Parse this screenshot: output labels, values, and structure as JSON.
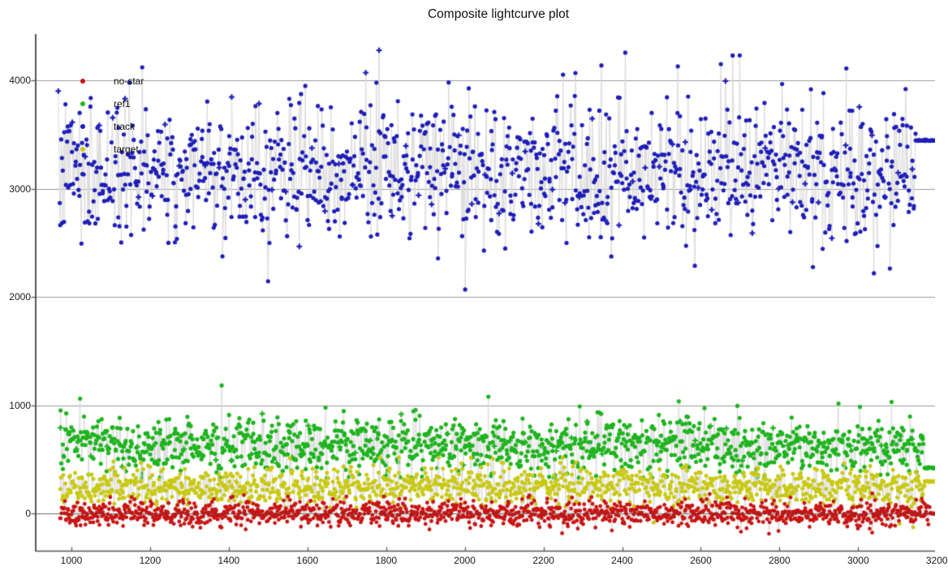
{
  "chart_data": {
    "type": "scatter",
    "title": "Composite lightcurve plot",
    "xlabel": "",
    "ylabel": "",
    "x_ticks": [
      1000,
      1200,
      1400,
      1600,
      1800,
      2000,
      2200,
      2400,
      2600,
      2800,
      3000,
      3200
    ],
    "y_ticks": [
      0,
      1000,
      2000,
      3000,
      4000
    ],
    "x_range": [
      967,
      3200
    ],
    "y_range": [
      -352,
      4427
    ],
    "grid": "horizontal-only",
    "legend": {
      "position": "top-left-inside",
      "entries": [
        {
          "label": "no-star",
          "color": "#c81414"
        },
        {
          "label": "ref1",
          "color": "#1eb41e"
        },
        {
          "label": "track",
          "color": "#1e1eb8"
        },
        {
          "label": "target",
          "color": "#c9c914"
        }
      ]
    },
    "colors": {
      "background": "#ffffff",
      "grid": "#9a9a9a",
      "axis": "#555555",
      "stem": "#dadada",
      "zero_line": "rgba(70,70,70,0.55)",
      "title_text": "#111111",
      "tick_text": "#1a1a1a"
    },
    "series": [
      {
        "name": "track",
        "color": "#1e1eb8",
        "marker": "circle-with-occasional-plus",
        "count": 1250,
        "seed": 7,
        "x_start": 968,
        "x_end": 3196,
        "y_mean": 3165,
        "y_sd": 315,
        "y_min": 2065,
        "y_max": 4345,
        "marker_radius": 2.6,
        "plus_every": 19,
        "tail_points": 28,
        "tail_y": 3445,
        "spikes": [
          {
            "x": 2408,
            "y": 4255
          },
          {
            "x": 2651,
            "y": 4150
          },
          {
            "x": 2001,
            "y": 2068
          },
          {
            "x": 2970,
            "y": 4110
          },
          {
            "x": 1180,
            "y": 4120
          }
        ]
      },
      {
        "name": "ref1",
        "color": "#1eb41e",
        "marker": "circle-with-occasional-plus",
        "count": 1300,
        "seed": 13,
        "x_start": 972,
        "x_end": 3196,
        "y_mean": 630,
        "y_sd": 125,
        "y_min": 330,
        "y_max": 1190,
        "marker_radius": 2.6,
        "plus_every": 23,
        "tail_points": 17,
        "tail_y": 420,
        "spikes": [
          {
            "x": 1022,
            "y": 1060
          },
          {
            "x": 1382,
            "y": 1182
          },
          {
            "x": 2060,
            "y": 1078
          },
          {
            "x": 2544,
            "y": 1035
          },
          {
            "x": 2950,
            "y": 1015
          },
          {
            "x": 3085,
            "y": 1030
          }
        ]
      },
      {
        "name": "target",
        "color": "#c9c914",
        "marker": "circle",
        "count": 1300,
        "seed": 21,
        "x_start": 972,
        "x_end": 3196,
        "y_mean": 248,
        "y_sd": 88,
        "y_min": -165,
        "y_max": 515,
        "marker_radius": 2.5,
        "plus_every": 0,
        "tail_points": 15,
        "tail_y": 295,
        "spikes": [
          {
            "x": 3105,
            "y": -95
          },
          {
            "x": 3140,
            "y": -128
          },
          {
            "x": 2480,
            "y": -85
          }
        ]
      },
      {
        "name": "no-star",
        "color": "#c81414",
        "marker": "circle",
        "count": 1450,
        "seed": 29,
        "x_start": 972,
        "x_end": 3196,
        "y_mean": 0,
        "y_sd": 58,
        "y_min": -190,
        "y_max": 185,
        "marker_radius": 2.4,
        "plus_every": 0,
        "tail_points": 10,
        "tail_y": 0,
        "spikes": []
      }
    ]
  }
}
